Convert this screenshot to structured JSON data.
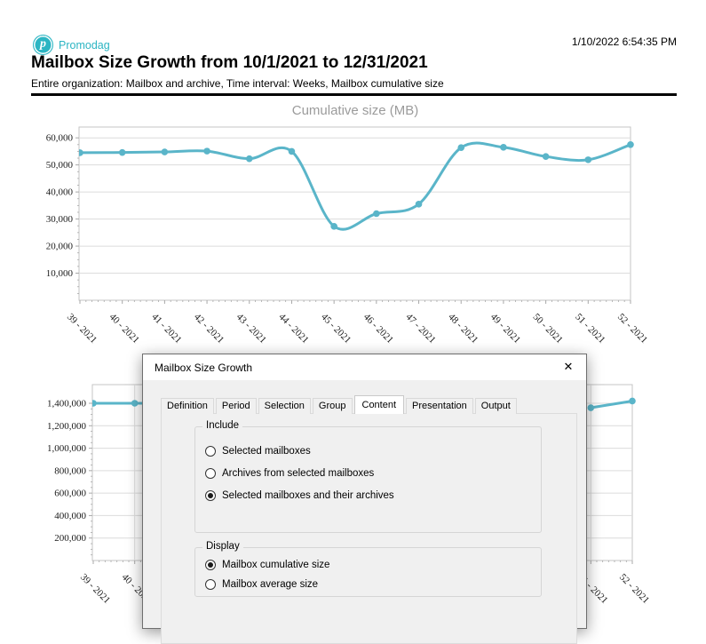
{
  "header": {
    "brand": "Promodag",
    "logo_letter": "p",
    "datetime": "1/10/2022 6:54:35 PM",
    "title": "Mailbox Size Growth from 10/1/2021 to 12/31/2021",
    "subtitle": "Entire organization: Mailbox and archive, Time interval: Weeks, Mailbox cumulative size"
  },
  "icons": {
    "close": "✕"
  },
  "colors": {
    "brand_teal": "#2cb5c3",
    "line": "#5ab5c9",
    "grid": "#dcdcdc",
    "chart_title_gray": "#9b9b9b"
  },
  "chart_data": [
    {
      "type": "line",
      "title": "Cumulative size (MB)",
      "xlabel": "",
      "ylabel": "",
      "categories": [
        "39 - 2021",
        "40 - 2021",
        "41 - 2021",
        "42 - 2021",
        "43 - 2021",
        "44 - 2021",
        "45 - 2021",
        "46 - 2021",
        "47 - 2021",
        "48 - 2021",
        "49 - 2021",
        "50 - 2021",
        "51 - 2021",
        "52 - 2021"
      ],
      "series": [
        {
          "name": "Mailbox cumulative size (MB)",
          "values": [
            54500,
            54600,
            54800,
            55100,
            52300,
            55000,
            27300,
            32000,
            35500,
            56400,
            56500,
            53100,
            51900,
            57500
          ]
        }
      ],
      "ylim": [
        0,
        64000
      ],
      "ytick_step": 10000,
      "yticks": [
        "10,000",
        "20,000",
        "30,000",
        "40,000",
        "50,000",
        "60,000"
      ],
      "grid": true,
      "legend": "none",
      "smooth": true,
      "marker": "circle",
      "partially_occluded": false
    },
    {
      "type": "line",
      "title": "",
      "xlabel": "",
      "ylabel": "",
      "categories": [
        "39 - 2021",
        "40 - 2021",
        "41 - 2021",
        "42 - 2021",
        "43 - 2021",
        "44 - 2021",
        "45 - 2021",
        "46 - 2021",
        "47 - 2021",
        "48 - 2021",
        "49 - 2021",
        "50 - 2021",
        "51 - 2021",
        "52 - 2021"
      ],
      "series": [
        {
          "name": "",
          "values": [
            1400000,
            1400000,
            1400000,
            null,
            null,
            null,
            null,
            null,
            null,
            null,
            null,
            null,
            1360000,
            1420000
          ]
        }
      ],
      "ylim": [
        0,
        1566000
      ],
      "ytick_step": 200000,
      "yticks": [
        "200,000",
        "400,000",
        "600,000",
        "800,000",
        "1,000,000",
        "1,200,000",
        "1,400,000"
      ],
      "grid": true,
      "legend": "none",
      "smooth": true,
      "marker": "circle",
      "partially_occluded": true
    }
  ],
  "dialog": {
    "title": "Mailbox Size Growth",
    "tabs": [
      {
        "label": "Definition",
        "active": false
      },
      {
        "label": "Period",
        "active": false
      },
      {
        "label": "Selection",
        "active": false
      },
      {
        "label": "Group",
        "active": false
      },
      {
        "label": "Content",
        "active": true
      },
      {
        "label": "Presentation",
        "active": false
      },
      {
        "label": "Output",
        "active": false
      }
    ],
    "groups": [
      {
        "label": "Include",
        "options": [
          {
            "label": "Selected mailboxes",
            "selected": false
          },
          {
            "label": "Archives from selected mailboxes",
            "selected": false
          },
          {
            "label": "Selected mailboxes and their archives",
            "selected": true
          }
        ]
      },
      {
        "label": "Display",
        "options": [
          {
            "label": "Mailbox cumulative size",
            "selected": true
          },
          {
            "label": "Mailbox average size",
            "selected": false
          }
        ]
      }
    ]
  }
}
